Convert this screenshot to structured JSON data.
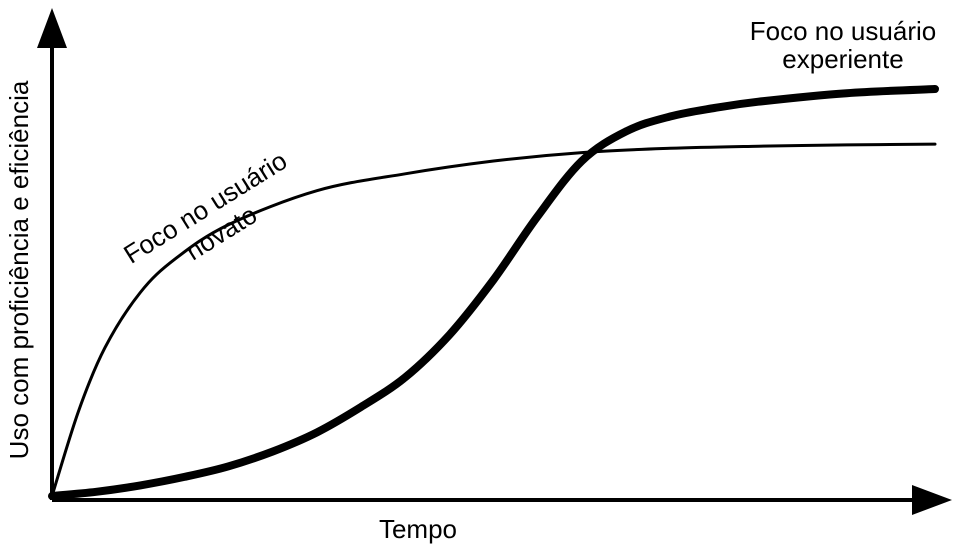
{
  "chart_data": {
    "type": "line",
    "title": "",
    "xlabel": "Tempo",
    "ylabel": "Uso com proficiência e eficiência",
    "xlim": [
      0,
      100
    ],
    "ylim": [
      0,
      100
    ],
    "grid": false,
    "axis_ticks": false,
    "series": [
      {
        "name": "Foco no usuário novato",
        "label_lines": [
          "Foco no usuário",
          "novato"
        ],
        "stroke": "thin",
        "x": [
          0,
          3,
          6,
          10,
          14,
          20,
          30,
          40,
          50,
          60,
          70,
          80,
          90,
          100
        ],
        "y": [
          0,
          20,
          35,
          48,
          56,
          64,
          72,
          76,
          79,
          81,
          82,
          82.5,
          82.8,
          83
        ]
      },
      {
        "name": "Foco no usuário experiente",
        "label_lines": [
          "Foco no usuário",
          "experiente"
        ],
        "stroke": "thick",
        "x": [
          0,
          5,
          10,
          15,
          20,
          25,
          30,
          35,
          40,
          45,
          50,
          55,
          60,
          65,
          70,
          75,
          80,
          90,
          100
        ],
        "y": [
          0,
          1,
          2.5,
          4.5,
          7,
          10.5,
          15,
          21,
          28,
          38,
          51,
          66,
          79,
          86,
          89.5,
          91.5,
          93,
          95,
          96
        ]
      }
    ]
  }
}
